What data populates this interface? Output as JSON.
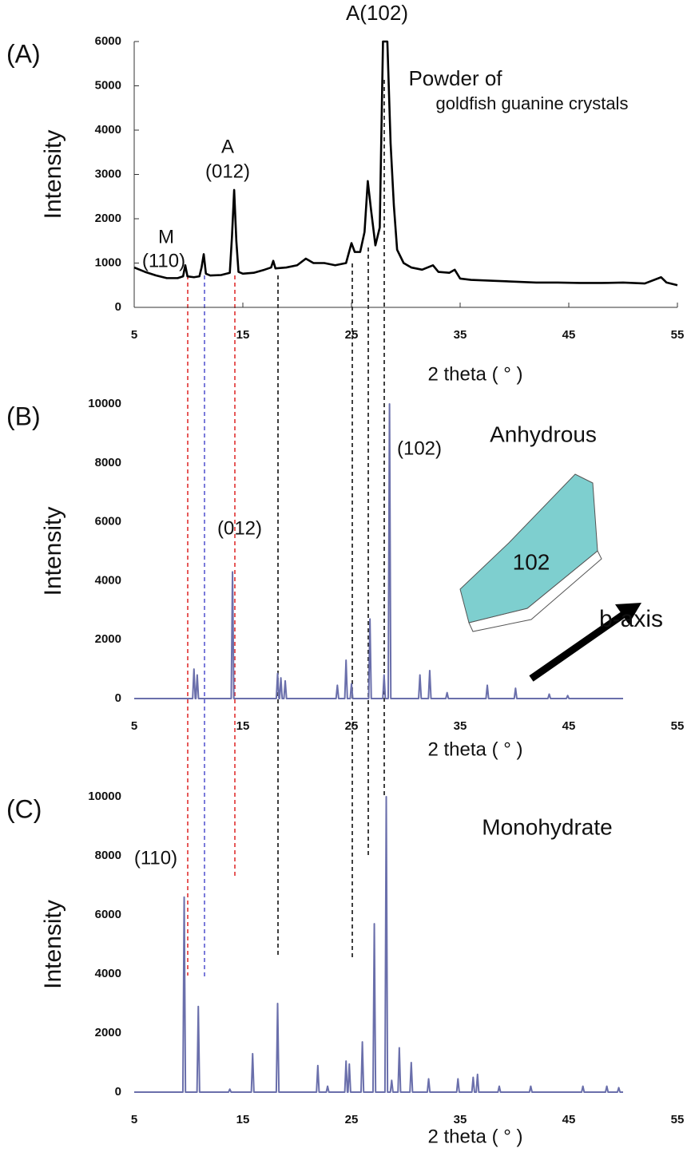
{
  "chart_data": [
    {
      "type": "line",
      "panel_label": "(A)",
      "xlabel": "2 theta ( ° )",
      "ylabel": "Intensity",
      "xlim": [
        5,
        55
      ],
      "xticks": [
        5,
        15,
        25,
        35,
        45,
        55
      ],
      "ylim": [
        0,
        6000
      ],
      "yticks": [
        0,
        1000,
        2000,
        3000,
        4000,
        5000,
        6000
      ],
      "color": "#000000",
      "annotations": [
        "A(102)",
        "Powder of",
        "goldfish guanine crystals",
        "A",
        "(012)",
        "M",
        "(110)"
      ],
      "x": [
        5,
        5.5,
        6,
        7,
        8,
        9,
        9.5,
        9.7,
        9.9,
        10.5,
        11,
        11.2,
        11.4,
        11.6,
        12,
        13,
        13.8,
        14.0,
        14.2,
        14.4,
        14.6,
        15,
        16,
        17,
        17.6,
        17.8,
        18,
        19,
        20,
        20.8,
        21.5,
        22.5,
        23.5,
        24.5,
        25,
        25.3,
        25.8,
        26.2,
        26.5,
        26.8,
        27.2,
        27.6,
        27.9,
        28.3,
        28.6,
        28.9,
        29.2,
        29.8,
        30.5,
        31.5,
        32.5,
        33,
        34,
        34.5,
        35,
        36,
        38,
        40,
        42,
        44,
        46,
        48,
        50,
        52,
        53.5,
        54,
        55
      ],
      "values": [
        900,
        850,
        800,
        720,
        660,
        660,
        700,
        950,
        700,
        680,
        700,
        900,
        1200,
        760,
        720,
        730,
        780,
        1600,
        2650,
        1500,
        800,
        760,
        780,
        850,
        900,
        1050,
        880,
        900,
        950,
        1100,
        1000,
        1000,
        950,
        1000,
        1450,
        1250,
        1250,
        1700,
        2850,
        2200,
        1400,
        1800,
        6000,
        6000,
        3700,
        2300,
        1300,
        1000,
        900,
        850,
        950,
        800,
        780,
        850,
        650,
        620,
        600,
        580,
        560,
        560,
        550,
        550,
        560,
        540,
        680,
        560,
        500
      ]
    },
    {
      "type": "line",
      "panel_label": "(B)",
      "xlabel": "2 theta ( ° )",
      "ylabel": "Intensity",
      "xlim": [
        5,
        55
      ],
      "xticks": [
        5,
        15,
        25,
        35,
        45,
        55
      ],
      "ylim": [
        0,
        10000
      ],
      "yticks": [
        0,
        2000,
        4000,
        6000,
        8000,
        10000
      ],
      "color": "#6a6fab",
      "annotations": [
        "Anhydrous",
        "(102)",
        "(012)",
        "102",
        "b-axis"
      ],
      "x": [
        5,
        10.38,
        10.5,
        10.62,
        10.68,
        10.8,
        10.92,
        13.93,
        14.05,
        14.17,
        18.08,
        18.2,
        18.32,
        18.38,
        18.5,
        18.62,
        18.78,
        18.9,
        19.02,
        23.58,
        23.7,
        23.82,
        24.38,
        24.5,
        24.62,
        24.88,
        25.0,
        25.12,
        26.58,
        26.7,
        26.82,
        27.88,
        28.0,
        28.12,
        28.38,
        28.5,
        28.62,
        31.18,
        31.3,
        31.42,
        32.08,
        32.2,
        32.32,
        33.68,
        33.8,
        33.92,
        37.38,
        37.5,
        37.62,
        39.98,
        40.1,
        40.22,
        43.08,
        43.2,
        43.32,
        44.78,
        44.9,
        45.02,
        50
      ],
      "values": [
        0,
        0,
        1000,
        0,
        0,
        800,
        0,
        0,
        4300,
        0,
        0,
        850,
        0,
        0,
        700,
        0,
        0,
        600,
        0,
        0,
        450,
        0,
        0,
        1300,
        0,
        0,
        500,
        0,
        0,
        2700,
        0,
        0,
        800,
        0,
        0,
        10000,
        0,
        0,
        800,
        0,
        0,
        950,
        0,
        0,
        200,
        0,
        0,
        450,
        0,
        0,
        350,
        0,
        0,
        150,
        0,
        0,
        100,
        0,
        0
      ]
    },
    {
      "type": "line",
      "panel_label": "(C)",
      "xlabel": "2 theta ( ° )",
      "ylabel": "Intensity",
      "xlim": [
        5,
        55
      ],
      "xticks": [
        5,
        15,
        25,
        35,
        45,
        55
      ],
      "ylim": [
        0,
        10000
      ],
      "yticks": [
        0,
        2000,
        4000,
        6000,
        8000,
        10000
      ],
      "color": "#6a6fab",
      "annotations": [
        "Monohydrate",
        "(110)"
      ],
      "x": [
        5,
        9.48,
        9.6,
        9.72,
        10.78,
        10.9,
        11.02,
        13.68,
        13.8,
        13.92,
        15.78,
        15.9,
        16.02,
        18.08,
        18.2,
        18.32,
        21.78,
        21.9,
        22.02,
        22.68,
        22.8,
        22.92,
        24.38,
        24.5,
        24.62,
        24.68,
        24.8,
        24.92,
        25.88,
        26.0,
        26.12,
        26.98,
        27.1,
        27.22,
        28.08,
        28.2,
        28.32,
        28.58,
        28.7,
        28.82,
        29.28,
        29.4,
        29.52,
        30.38,
        30.5,
        30.62,
        31.98,
        32.1,
        32.22,
        34.68,
        34.8,
        34.92,
        36.08,
        36.2,
        36.32,
        36.48,
        36.6,
        36.72,
        38.48,
        38.6,
        38.72,
        41.38,
        41.5,
        41.62,
        46.18,
        46.3,
        46.42,
        48.38,
        48.5,
        48.62,
        49.48,
        49.6,
        49.72,
        50
      ],
      "values": [
        0,
        0,
        6600,
        0,
        0,
        2900,
        0,
        0,
        100,
        0,
        0,
        1300,
        0,
        0,
        3000,
        0,
        0,
        900,
        0,
        0,
        200,
        0,
        0,
        1050,
        0,
        0,
        950,
        0,
        0,
        1700,
        0,
        0,
        5700,
        0,
        0,
        10000,
        0,
        0,
        400,
        0,
        0,
        1500,
        0,
        0,
        1000,
        0,
        0,
        450,
        0,
        0,
        450,
        0,
        0,
        500,
        0,
        0,
        600,
        0,
        0,
        200,
        0,
        0,
        200,
        0,
        0,
        200,
        0,
        0,
        200,
        0,
        0,
        150,
        0,
        0
      ]
    }
  ]
}
